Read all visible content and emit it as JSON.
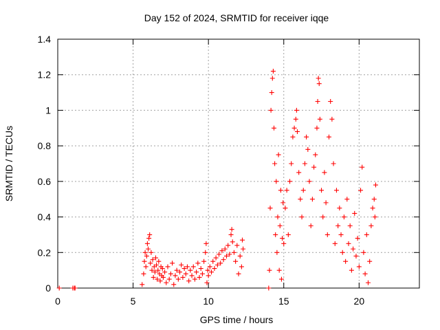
{
  "chart_data": {
    "type": "scatter",
    "title": "Day 152 of 2024, SRMTID for receiver iqqe",
    "xlabel": "GPS time / hours",
    "ylabel": "SRMTID / TECUs",
    "xlim": [
      0,
      24
    ],
    "ylim": [
      0,
      1.4
    ],
    "xticks": [
      0,
      5,
      10,
      15,
      20
    ],
    "yticks": [
      0,
      0.2,
      0.4,
      0.6,
      0.8,
      1,
      1.2,
      1.4
    ],
    "xtick_labels": [
      "0",
      "5",
      "10",
      "15",
      "20"
    ],
    "ytick_labels": [
      "0",
      "0.2",
      "0.4",
      "0.6",
      "0.8",
      "1",
      "1.2",
      "1.4"
    ],
    "grid": true,
    "marker": "+",
    "color": "#ff0000",
    "series": [
      {
        "name": "SRMTID",
        "points": [
          [
            0.1,
            0.0
          ],
          [
            1.0,
            0.0
          ],
          [
            1.1,
            0.0
          ],
          [
            1.15,
            0.0
          ],
          [
            5.6,
            0.02
          ],
          [
            5.7,
            0.08
          ],
          [
            5.75,
            0.15
          ],
          [
            5.8,
            0.2
          ],
          [
            5.85,
            0.12
          ],
          [
            5.9,
            0.18
          ],
          [
            5.95,
            0.25
          ],
          [
            6.0,
            0.22
          ],
          [
            6.05,
            0.28
          ],
          [
            6.1,
            0.3
          ],
          [
            6.15,
            0.14
          ],
          [
            6.2,
            0.2
          ],
          [
            6.25,
            0.1
          ],
          [
            6.3,
            0.16
          ],
          [
            6.35,
            0.06
          ],
          [
            6.4,
            0.12
          ],
          [
            6.45,
            0.09
          ],
          [
            6.5,
            0.17
          ],
          [
            6.55,
            0.13
          ],
          [
            6.6,
            0.05
          ],
          [
            6.65,
            0.1
          ],
          [
            6.7,
            0.15
          ],
          [
            6.75,
            0.08
          ],
          [
            6.8,
            0.04
          ],
          [
            6.85,
            0.12
          ],
          [
            6.9,
            0.07
          ],
          [
            6.95,
            0.11
          ],
          [
            7.0,
            0.06
          ],
          [
            7.1,
            0.09
          ],
          [
            7.2,
            0.03
          ],
          [
            7.3,
            0.12
          ],
          [
            7.4,
            0.05
          ],
          [
            7.5,
            0.08
          ],
          [
            7.6,
            0.14
          ],
          [
            7.7,
            0.02
          ],
          [
            7.8,
            0.07
          ],
          [
            7.9,
            0.1
          ],
          [
            8.0,
            0.05
          ],
          [
            8.1,
            0.09
          ],
          [
            8.2,
            0.13
          ],
          [
            8.3,
            0.06
          ],
          [
            8.4,
            0.11
          ],
          [
            8.5,
            0.08
          ],
          [
            8.6,
            0.12
          ],
          [
            8.7,
            0.04
          ],
          [
            8.8,
            0.1
          ],
          [
            8.9,
            0.07
          ],
          [
            9.0,
            0.12
          ],
          [
            9.1,
            0.05
          ],
          [
            9.2,
            0.09
          ],
          [
            9.3,
            0.14
          ],
          [
            9.4,
            0.06
          ],
          [
            9.5,
            0.11
          ],
          [
            9.6,
            0.08
          ],
          [
            9.7,
            0.15
          ],
          [
            9.8,
            0.2
          ],
          [
            9.85,
            0.25
          ],
          [
            9.9,
            0.03
          ],
          [
            9.95,
            0.1
          ],
          [
            10.0,
            0.07
          ],
          [
            10.1,
            0.12
          ],
          [
            10.2,
            0.09
          ],
          [
            10.3,
            0.15
          ],
          [
            10.4,
            0.11
          ],
          [
            10.5,
            0.17
          ],
          [
            10.6,
            0.13
          ],
          [
            10.7,
            0.19
          ],
          [
            10.8,
            0.14
          ],
          [
            10.9,
            0.21
          ],
          [
            11.0,
            0.16
          ],
          [
            11.1,
            0.22
          ],
          [
            11.2,
            0.18
          ],
          [
            11.3,
            0.24
          ],
          [
            11.4,
            0.19
          ],
          [
            11.5,
            0.3
          ],
          [
            11.55,
            0.33
          ],
          [
            11.6,
            0.26
          ],
          [
            11.7,
            0.2
          ],
          [
            11.8,
            0.15
          ],
          [
            11.9,
            0.24
          ],
          [
            12.0,
            0.08
          ],
          [
            12.1,
            0.18
          ],
          [
            12.2,
            0.12
          ],
          [
            12.25,
            0.27
          ],
          [
            12.3,
            0.22
          ],
          [
            14.0,
            0.0
          ],
          [
            14.05,
            0.1
          ],
          [
            14.1,
            0.45
          ],
          [
            14.15,
            1.0
          ],
          [
            14.2,
            1.1
          ],
          [
            14.25,
            1.18
          ],
          [
            14.3,
            1.22
          ],
          [
            14.35,
            0.9
          ],
          [
            14.4,
            0.7
          ],
          [
            14.45,
            0.3
          ],
          [
            14.5,
            0.6
          ],
          [
            14.55,
            0.2
          ],
          [
            14.6,
            0.4
          ],
          [
            14.65,
            0.75
          ],
          [
            14.7,
            0.1
          ],
          [
            14.75,
            0.35
          ],
          [
            14.8,
            0.55
          ],
          [
            14.85,
            0.05
          ],
          [
            14.9,
            0.28
          ],
          [
            14.95,
            0.48
          ],
          [
            15.0,
            0.25
          ],
          [
            15.1,
            0.45
          ],
          [
            15.2,
            0.55
          ],
          [
            15.3,
            0.3
          ],
          [
            15.4,
            0.6
          ],
          [
            15.5,
            0.7
          ],
          [
            15.6,
            0.85
          ],
          [
            15.7,
            0.9
          ],
          [
            15.8,
            0.95
          ],
          [
            15.85,
            1.0
          ],
          [
            15.9,
            0.88
          ],
          [
            16.0,
            0.65
          ],
          [
            16.1,
            0.5
          ],
          [
            16.2,
            0.4
          ],
          [
            16.3,
            0.55
          ],
          [
            16.4,
            0.7
          ],
          [
            16.5,
            0.85
          ],
          [
            16.6,
            0.78
          ],
          [
            16.7,
            0.6
          ],
          [
            16.8,
            0.35
          ],
          [
            16.9,
            0.5
          ],
          [
            17.0,
            0.68
          ],
          [
            17.1,
            0.75
          ],
          [
            17.2,
            0.9
          ],
          [
            17.25,
            1.05
          ],
          [
            17.3,
            1.18
          ],
          [
            17.35,
            1.15
          ],
          [
            17.4,
            0.95
          ],
          [
            17.5,
            0.55
          ],
          [
            17.6,
            0.4
          ],
          [
            17.7,
            0.65
          ],
          [
            17.8,
            0.48
          ],
          [
            17.9,
            0.3
          ],
          [
            18.0,
            0.85
          ],
          [
            18.1,
            1.05
          ],
          [
            18.2,
            0.95
          ],
          [
            18.3,
            0.7
          ],
          [
            18.4,
            0.25
          ],
          [
            18.5,
            0.55
          ],
          [
            18.6,
            0.35
          ],
          [
            18.7,
            0.45
          ],
          [
            18.8,
            0.3
          ],
          [
            18.9,
            0.2
          ],
          [
            19.0,
            0.4
          ],
          [
            19.1,
            0.15
          ],
          [
            19.2,
            0.5
          ],
          [
            19.3,
            0.25
          ],
          [
            19.4,
            0.35
          ],
          [
            19.5,
            0.1
          ],
          [
            19.6,
            0.22
          ],
          [
            19.7,
            0.42
          ],
          [
            19.8,
            0.18
          ],
          [
            19.9,
            0.28
          ],
          [
            20.0,
            0.12
          ],
          [
            20.1,
            0.55
          ],
          [
            20.2,
            0.68
          ],
          [
            20.3,
            0.2
          ],
          [
            20.4,
            0.08
          ],
          [
            20.5,
            0.3
          ],
          [
            20.6,
            0.03
          ],
          [
            20.7,
            0.15
          ],
          [
            20.8,
            0.35
          ],
          [
            20.9,
            0.45
          ],
          [
            21.0,
            0.5
          ],
          [
            21.05,
            0.4
          ],
          [
            21.1,
            0.58
          ]
        ]
      }
    ]
  }
}
